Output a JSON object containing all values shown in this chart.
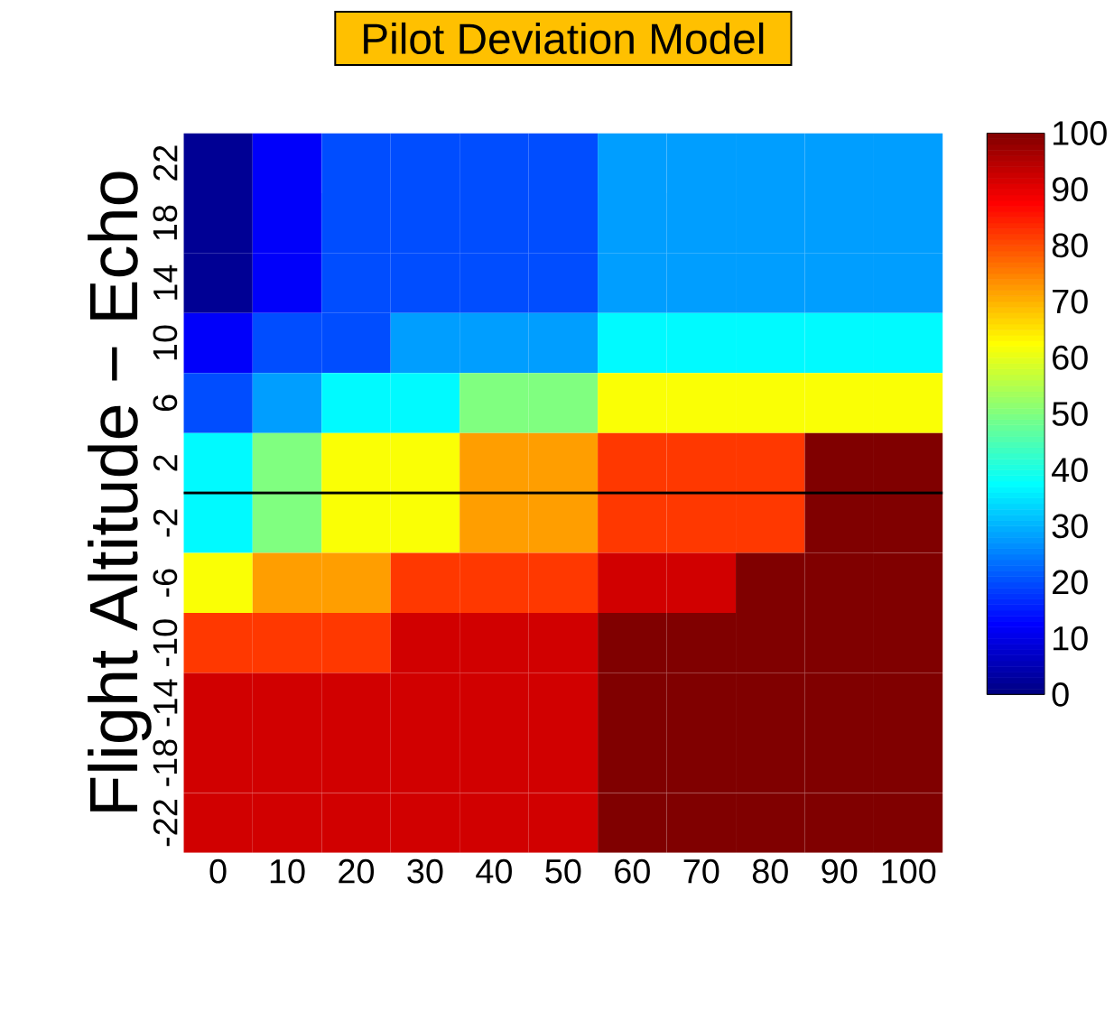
{
  "chart_data": {
    "type": "heatmap",
    "title": "Pilot Deviation Model",
    "ylabel": "Flight Altitude − Echo",
    "categories": [
      "0",
      "10",
      "20",
      "30",
      "40",
      "50",
      "60",
      "70",
      "80",
      "90",
      "100"
    ],
    "y_categories": [
      "22",
      "18",
      "14",
      "10",
      "6",
      "2",
      "-2",
      "-6",
      "-10",
      "-14",
      "-18",
      "-22"
    ],
    "cells": [
      [
        2,
        12,
        20,
        20,
        20,
        20,
        28,
        28,
        28,
        28,
        28
      ],
      [
        2,
        12,
        20,
        20,
        20,
        20,
        28,
        28,
        28,
        28,
        28
      ],
      [
        2,
        12,
        20,
        20,
        20,
        20,
        28,
        28,
        28,
        28,
        28
      ],
      [
        12,
        20,
        20,
        28,
        28,
        28,
        37,
        37,
        37,
        37,
        37
      ],
      [
        20,
        28,
        37,
        37,
        50,
        50,
        62,
        62,
        62,
        62,
        62
      ],
      [
        37,
        50,
        62,
        62,
        72,
        72,
        82,
        82,
        82,
        100,
        100
      ],
      [
        37,
        50,
        62,
        62,
        72,
        72,
        82,
        82,
        82,
        100,
        100
      ],
      [
        62,
        72,
        72,
        82,
        82,
        82,
        92,
        92,
        100,
        100,
        100
      ],
      [
        82,
        82,
        82,
        92,
        92,
        92,
        100,
        100,
        100,
        100,
        100
      ],
      [
        92,
        92,
        92,
        92,
        92,
        92,
        100,
        100,
        100,
        100,
        100
      ],
      [
        92,
        92,
        92,
        92,
        92,
        92,
        100,
        100,
        100,
        100,
        100
      ],
      [
        92,
        92,
        92,
        92,
        92,
        92,
        100,
        100,
        100,
        100,
        100
      ]
    ],
    "clim": [
      0,
      100
    ],
    "cticks": [
      0,
      10,
      20,
      30,
      40,
      50,
      60,
      70,
      80,
      90,
      100
    ]
  }
}
